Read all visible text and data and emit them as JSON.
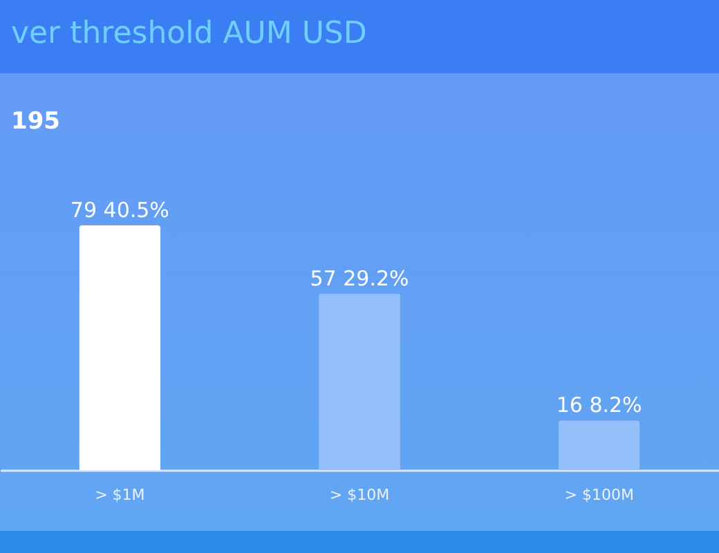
{
  "chart_data": {
    "type": "bar",
    "title": "ver threshold AUM USD",
    "annotations": [
      "195"
    ],
    "categories": [
      "> $1M",
      "> $10M",
      "> $100M"
    ],
    "values": [
      79,
      57,
      16
    ],
    "colors": [
      "#ffffff",
      "#94bffa",
      "#94bffa"
    ],
    "value_labels": [
      "79 40.5%",
      "57 29.2%",
      "16 8.2%"
    ]
  }
}
